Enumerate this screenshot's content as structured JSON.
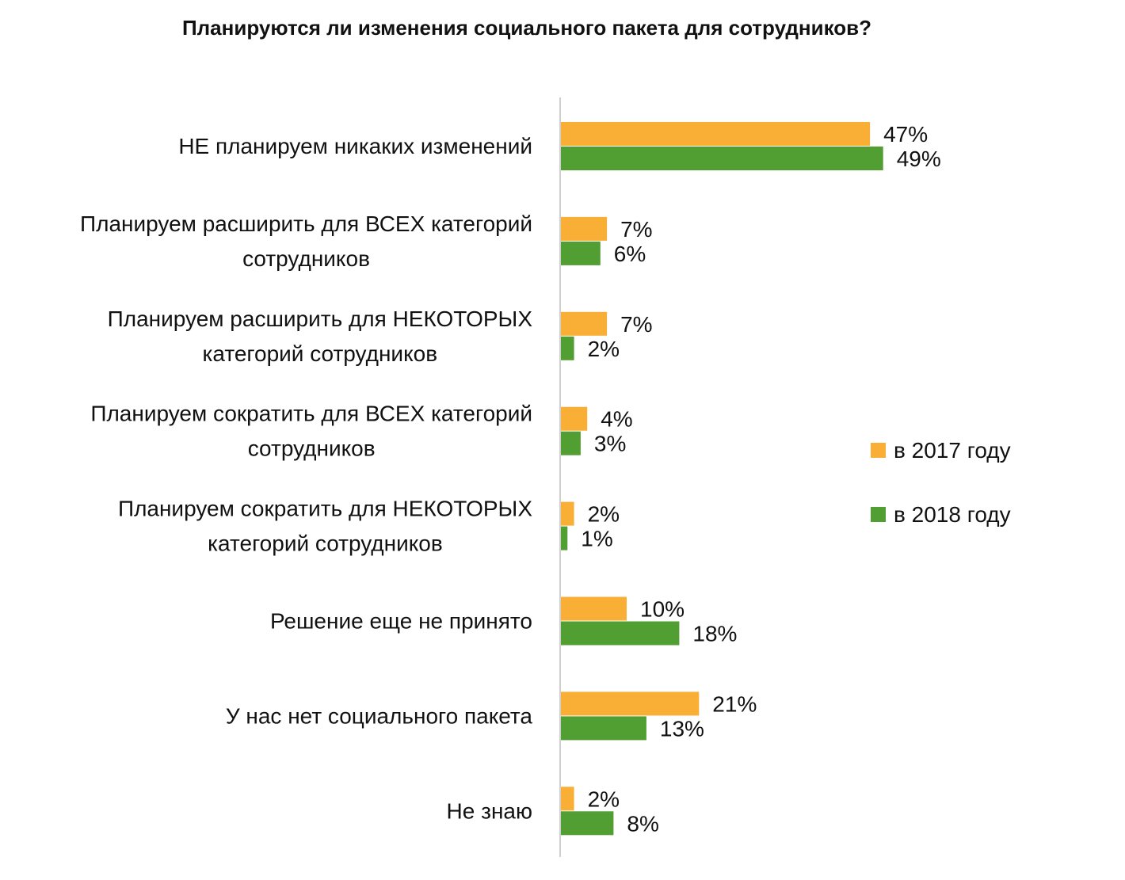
{
  "chart_data": {
    "type": "bar",
    "orientation": "horizontal",
    "title": "Планируются ли изменения социального пакета для сотрудников?",
    "xlabel": "",
    "ylabel": "",
    "xlim": [
      0,
      50
    ],
    "grid": false,
    "legend_position": "right",
    "categories": [
      [
        "НЕ планируем никаких изменений"
      ],
      [
        "Планируем расширить для ВСЕХ категорий",
        "сотрудников"
      ],
      [
        "Планируем расширить для НЕКОТОРЫХ",
        "категорий сотрудников"
      ],
      [
        "Планируем сократить для ВСЕХ категорий",
        "сотрудников"
      ],
      [
        "Планируем сократить для НЕКОТОРЫХ",
        "категорий сотрудников"
      ],
      [
        "Решение еще не принято"
      ],
      [
        "У нас нет социального пакета"
      ],
      [
        "Не знаю"
      ]
    ],
    "series": [
      {
        "name": "в 2017 году",
        "color": "#F9AE35",
        "values": [
          47,
          7,
          7,
          4,
          2,
          10,
          21,
          2
        ]
      },
      {
        "name": "в 2018 году",
        "color": "#519E32",
        "values": [
          49,
          6,
          2,
          3,
          1,
          18,
          13,
          8
        ]
      }
    ],
    "value_suffix": "%"
  }
}
